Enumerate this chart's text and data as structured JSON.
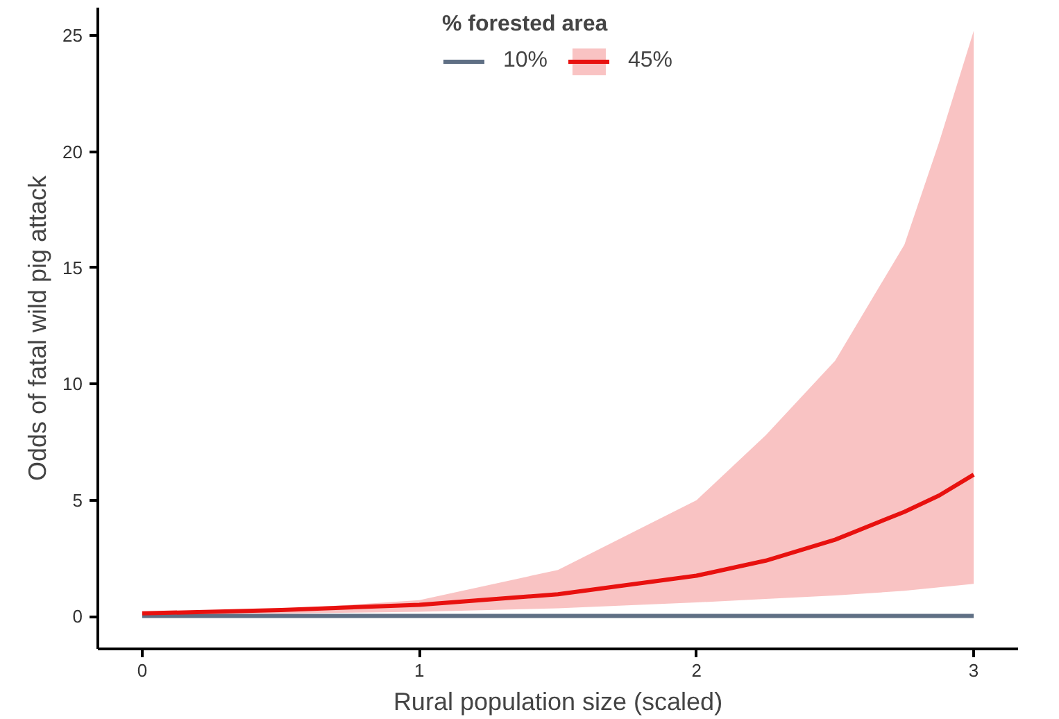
{
  "chart_data": {
    "type": "line",
    "xlabel": "Rural population size (scaled)",
    "ylabel": "Odds of fatal wild pig attack",
    "legend_title": "% forested area",
    "x": [
      0,
      0.5,
      1,
      1.5,
      2,
      2.25,
      2.5,
      2.75,
      2.875,
      3
    ],
    "xlim": [
      -0.16,
      3.16
    ],
    "xticks": [
      0,
      1,
      2,
      3
    ],
    "ylim": [
      -1.4,
      26.2
    ],
    "yticks": [
      0,
      5,
      10,
      15,
      20,
      25
    ],
    "series": [
      {
        "name": "10%",
        "color": "#5f6f84",
        "values": [
          0.02,
          0.02,
          0.02,
          0.02,
          0.02,
          0.02,
          0.02,
          0.02,
          0.02,
          0.02
        ]
      },
      {
        "name": "45%",
        "color": "#e8110f",
        "values": [
          0.13,
          0.27,
          0.5,
          0.95,
          1.75,
          2.4,
          3.3,
          4.5,
          5.2,
          6.1
        ],
        "lower": [
          0.1,
          0.12,
          0.2,
          0.35,
          0.6,
          0.75,
          0.9,
          1.1,
          1.25,
          1.4
        ],
        "upper": [
          0.14,
          0.3,
          0.7,
          2.0,
          5.0,
          7.8,
          11.0,
          16.0,
          20.4,
          25.2
        ]
      }
    ],
    "grid": false,
    "legend": "top"
  }
}
